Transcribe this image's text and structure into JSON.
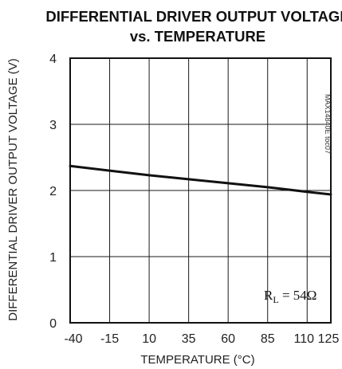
{
  "chart_data": {
    "type": "line",
    "title": [
      "DIFFERENTIAL DRIVER OUTPUT VOLTAGE",
      "vs. TEMPERATURE"
    ],
    "xlabel": "TEMPERATURE (°C)",
    "ylabel": "DIFFERENTIAL DRIVER OUTPUT VOLTAGE (V)",
    "xlim": [
      -40,
      125
    ],
    "ylim": [
      0,
      4
    ],
    "x_ticks": [
      -40,
      -15,
      10,
      35,
      60,
      85,
      110,
      125
    ],
    "x_tick_labels": [
      "-40",
      "-15",
      "10",
      "35",
      "60",
      "85",
      "110",
      "125"
    ],
    "y_ticks": [
      0,
      1,
      2,
      3,
      4
    ],
    "y_tick_labels": [
      "0",
      "1",
      "2",
      "3",
      "4"
    ],
    "grid": true,
    "series": [
      {
        "x": [
          -40,
          -15,
          10,
          35,
          60,
          85,
          110,
          125
        ],
        "values": [
          2.37,
          2.3,
          2.23,
          2.17,
          2.11,
          2.05,
          1.98,
          1.94
        ]
      }
    ],
    "annotation": {
      "main": "R",
      "sub": "L",
      "rest": " = 54Ω",
      "position": "bottom-right"
    },
    "side_note": "MAX14840E toc07"
  }
}
